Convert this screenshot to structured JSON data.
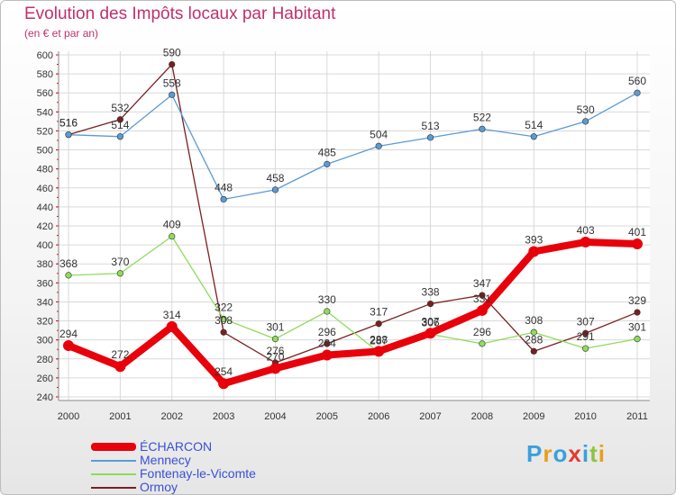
{
  "title": "Evolution des Impôts locaux par Habitant",
  "subtitle": "(en € et par an)",
  "logo": {
    "text": "Proxiti",
    "colors": [
      "#3aa0dc",
      "#e6a019",
      "#3aa0dc",
      "#e23a2f",
      "#3aa0dc",
      "#8cc63f",
      "#e6a019"
    ]
  },
  "chart_data": {
    "type": "line",
    "title": "Evolution des Impôts locaux par Habitant",
    "subtitle": "(en € et par an)",
    "xlabel": "",
    "ylabel": "",
    "ylim": [
      240,
      600
    ],
    "ytick_step": 20,
    "grid": true,
    "legend": "bottom-left",
    "categories": [
      "2000",
      "2001",
      "2002",
      "2003",
      "2004",
      "2005",
      "2006",
      "2007",
      "2008",
      "2009",
      "2010",
      "2011"
    ],
    "series": [
      {
        "name": "ÉCHARCON",
        "color": "#e8000b",
        "values": [
          294,
          272,
          314,
          254,
          270,
          284,
          288,
          307,
          331,
          393,
          403,
          401
        ],
        "labels": [
          "294",
          "272",
          "314",
          "254",
          "270",
          "284",
          "288",
          "307",
          "331",
          "393",
          "403",
          "401"
        ]
      },
      {
        "name": "Mennecy",
        "color": "#5b9bd5",
        "values": [
          516,
          514,
          558,
          448,
          458,
          485,
          504,
          513,
          522,
          514,
          530,
          560
        ],
        "labels": [
          "516",
          "514",
          "558",
          "448",
          "458",
          "485",
          "504",
          "513",
          "522",
          "514",
          "530",
          "560"
        ]
      },
      {
        "name": "Fontenay-le-Vicomte",
        "color": "#8fdc5a",
        "values": [
          368,
          370,
          409,
          322,
          301,
          330,
          287,
          306,
          296,
          308,
          291,
          301
        ],
        "labels": [
          "368",
          "370",
          "409",
          "322",
          "301",
          "330",
          "287",
          "306",
          "296",
          "308",
          "291",
          "301"
        ]
      },
      {
        "name": "Ormoy",
        "color": "#7a1f1f",
        "values": [
          516,
          532,
          590,
          308,
          276,
          296,
          317,
          338,
          347,
          288,
          307,
          329
        ],
        "labels": [
          "516",
          "532",
          "590",
          "308",
          "276",
          "296",
          "317",
          "338",
          "347",
          "288",
          "307",
          "329"
        ]
      }
    ]
  }
}
